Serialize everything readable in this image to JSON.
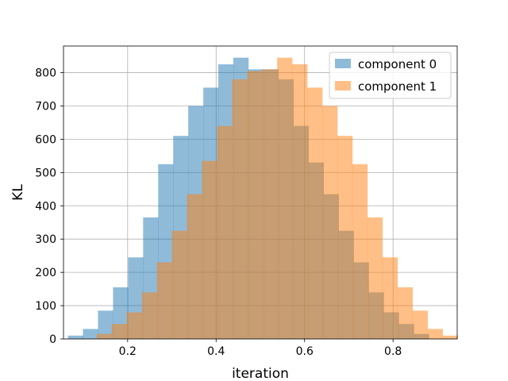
{
  "chart_data": {
    "type": "bar",
    "histogram": true,
    "title": "",
    "xlabel": "iteration",
    "ylabel": "KL",
    "xlim": [
      0.055,
      0.945
    ],
    "ylim": [
      0,
      880
    ],
    "xticks": [
      0.2,
      0.4,
      0.6,
      0.8
    ],
    "yticks": [
      0,
      100,
      200,
      300,
      400,
      500,
      600,
      700,
      800
    ],
    "grid": true,
    "legend_position": "top-right",
    "bin_width": 0.034,
    "series": [
      {
        "name": "component 0",
        "color": "#1f77b4",
        "opacity": 0.5,
        "bin_start": 0.065,
        "values": [
          10,
          30,
          85,
          155,
          245,
          365,
          525,
          610,
          700,
          755,
          825,
          845,
          810,
          810,
          780,
          640,
          530,
          435,
          325,
          230,
          140,
          80,
          45,
          15
        ]
      },
      {
        "name": "component 1",
        "color": "#ff7f0e",
        "opacity": 0.5,
        "bin_start": 0.13,
        "values": [
          15,
          45,
          80,
          140,
          230,
          325,
          435,
          535,
          640,
          780,
          805,
          810,
          845,
          825,
          755,
          700,
          610,
          525,
          365,
          245,
          155,
          85,
          30,
          10
        ]
      }
    ]
  }
}
